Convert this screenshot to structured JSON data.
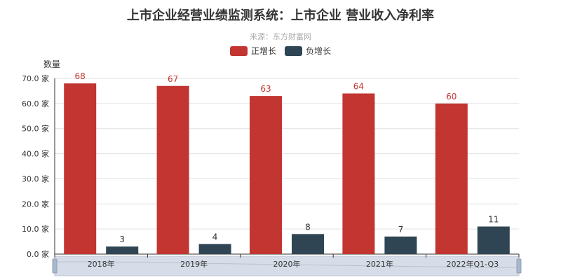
{
  "chart_data": {
    "type": "bar",
    "title": "上市企业经营业绩监测系统：上市企业 营业收入净利率",
    "subtitle": "来源：东方财富网",
    "ylabel": "数量",
    "xlabel": "",
    "ylim": [
      0,
      70
    ],
    "y_tick_step": 10,
    "y_tick_labels": [
      "0.0 家",
      "10.0 家",
      "20.0 家",
      "30.0 家",
      "40.0 家",
      "50.0 家",
      "60.0 家",
      "70.0 家"
    ],
    "grid": true,
    "legend_position": "top-center",
    "categories": [
      "2018年",
      "2019年",
      "2020年",
      "2021年",
      "2022年Q1-Q3"
    ],
    "series": [
      {
        "name": "正增长",
        "color": "#c23531",
        "values": [
          68,
          67,
          63,
          64,
          60
        ]
      },
      {
        "name": "负增长",
        "color": "#2f4554",
        "values": [
          3,
          4,
          8,
          7,
          11
        ]
      }
    ]
  }
}
